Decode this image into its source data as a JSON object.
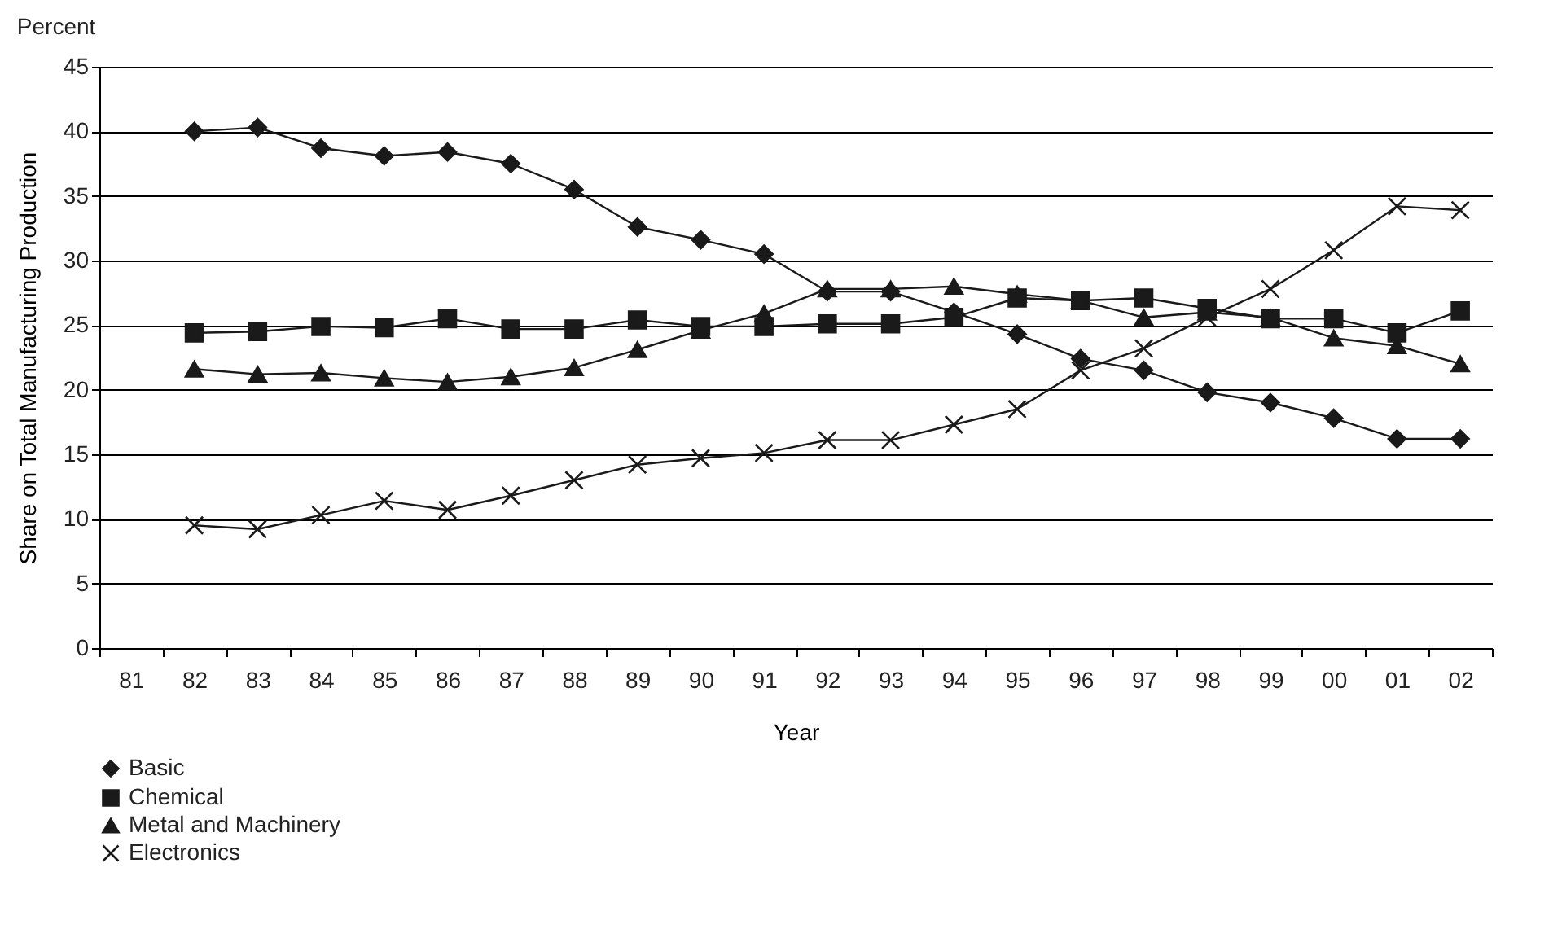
{
  "chart_data": {
    "type": "line",
    "xlabel": "Year",
    "ylabel": "Share on Total Manufacturing Production",
    "annotations": [
      "Percent"
    ],
    "categories": [
      "81",
      "82",
      "83",
      "84",
      "85",
      "86",
      "87",
      "88",
      "89",
      "90",
      "91",
      "92",
      "93",
      "94",
      "95",
      "96",
      "97",
      "98",
      "99",
      "00",
      "01",
      "02"
    ],
    "ylim": [
      0,
      45
    ],
    "yticks": [
      0,
      5,
      10,
      15,
      20,
      25,
      30,
      35,
      40,
      45
    ],
    "grid": "y",
    "legend": "bottom",
    "series": [
      {
        "name": "Basic",
        "color": "#1a1a1a",
        "marker": "diamond",
        "values": [
          null,
          40,
          40.3,
          38.7,
          38.1,
          38.4,
          37.5,
          35.5,
          32.6,
          31.6,
          30.5,
          27.6,
          27.6,
          26,
          24.3,
          22.4,
          21.5,
          19.8,
          19,
          17.8,
          16.2,
          16.2
        ]
      },
      {
        "name": "Chemical",
        "color": "#1a1a1a",
        "marker": "square",
        "values": [
          null,
          24.4,
          24.5,
          24.9,
          24.8,
          25.5,
          24.7,
          24.7,
          25.4,
          24.9,
          24.9,
          25.1,
          25.1,
          25.6,
          27.1,
          26.9,
          27.1,
          26.3,
          25.5,
          25.5,
          24.4,
          26.1
        ]
      },
      {
        "name": "Metal and Machinery",
        "color": "#1a1a1a",
        "marker": "triangle",
        "values": [
          null,
          21.6,
          21.2,
          21.3,
          20.9,
          20.6,
          21,
          21.7,
          23.1,
          24.6,
          25.9,
          27.8,
          27.8,
          28,
          27.4,
          26.9,
          25.6,
          26,
          25.6,
          24,
          23.4,
          22
        ]
      },
      {
        "name": "Electronics",
        "color": "#1a1a1a",
        "marker": "cross",
        "values": [
          null,
          9.5,
          9.2,
          10.3,
          11.4,
          10.7,
          11.8,
          13,
          14.2,
          14.7,
          15.1,
          16.1,
          16.1,
          17.3,
          18.5,
          21.5,
          23.2,
          25.6,
          27.8,
          30.8,
          34.2,
          33.9
        ]
      }
    ]
  }
}
